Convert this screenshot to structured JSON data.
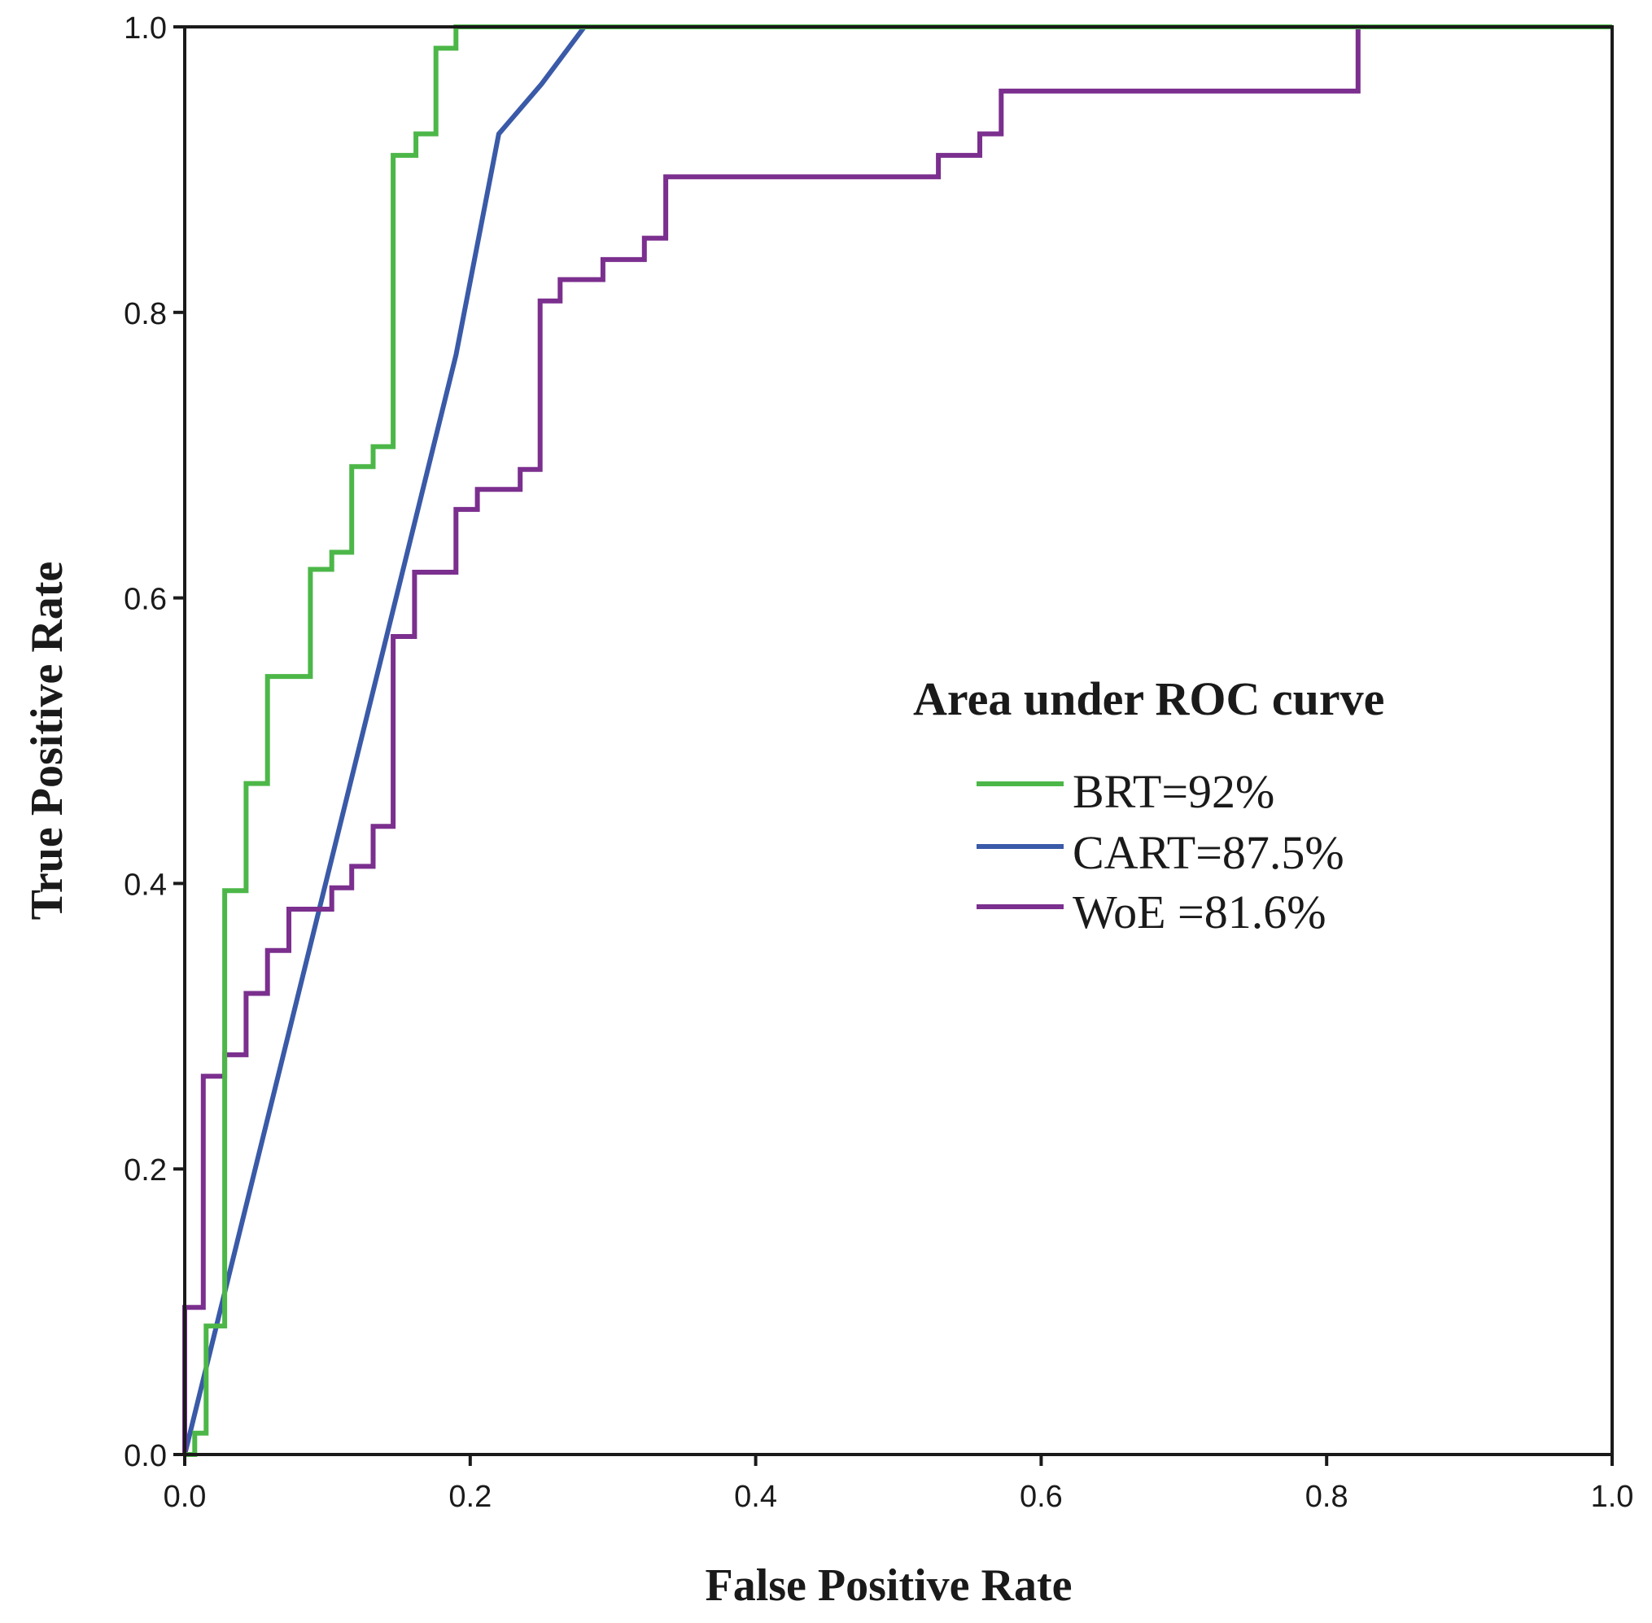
{
  "chart_data": {
    "type": "line",
    "title": "",
    "xlabel": "False Positive Rate",
    "ylabel": "True Positive Rate",
    "xlim": [
      0.0,
      1.0
    ],
    "ylim": [
      0.0,
      1.0
    ],
    "grid": false,
    "x_ticks": [
      "0.0",
      "0.2",
      "0.4",
      "0.6",
      "0.8",
      "1.0"
    ],
    "y_ticks": [
      "0.0",
      "0.2",
      "0.4",
      "0.6",
      "0.8",
      "1.0"
    ],
    "legend": {
      "title": "Area under ROC curve",
      "placement": "center-right",
      "entries": [
        "BRT=92%",
        "CART=87.5%",
        "WoE =81.6%"
      ]
    },
    "series": [
      {
        "name": "BRT=92%",
        "color": "#4cb748",
        "points": [
          [
            0.0,
            0.0
          ],
          [
            0.007,
            0.0
          ],
          [
            0.007,
            0.015
          ],
          [
            0.015,
            0.015
          ],
          [
            0.015,
            0.09
          ],
          [
            0.028,
            0.09
          ],
          [
            0.028,
            0.395
          ],
          [
            0.043,
            0.395
          ],
          [
            0.043,
            0.47
          ],
          [
            0.058,
            0.47
          ],
          [
            0.058,
            0.545
          ],
          [
            0.088,
            0.545
          ],
          [
            0.088,
            0.62
          ],
          [
            0.103,
            0.62
          ],
          [
            0.103,
            0.632
          ],
          [
            0.117,
            0.632
          ],
          [
            0.117,
            0.692
          ],
          [
            0.132,
            0.692
          ],
          [
            0.132,
            0.706
          ],
          [
            0.146,
            0.706
          ],
          [
            0.146,
            0.91
          ],
          [
            0.162,
            0.91
          ],
          [
            0.162,
            0.925
          ],
          [
            0.176,
            0.925
          ],
          [
            0.176,
            0.985
          ],
          [
            0.19,
            0.985
          ],
          [
            0.19,
            1.0
          ],
          [
            1.0,
            1.0
          ]
        ]
      },
      {
        "name": "CART=87.5%",
        "color": "#3a5aa8",
        "points": [
          [
            0.0,
            0.0
          ],
          [
            0.19,
            0.77
          ],
          [
            0.22,
            0.925
          ],
          [
            0.25,
            0.96
          ],
          [
            0.28,
            1.0
          ],
          [
            1.0,
            1.0
          ]
        ]
      },
      {
        "name": "WoE =81.6%",
        "color": "#7b2f8e",
        "points": [
          [
            0.0,
            0.0
          ],
          [
            0.0,
            0.103
          ],
          [
            0.013,
            0.103
          ],
          [
            0.013,
            0.265
          ],
          [
            0.028,
            0.265
          ],
          [
            0.028,
            0.28
          ],
          [
            0.043,
            0.28
          ],
          [
            0.043,
            0.323
          ],
          [
            0.058,
            0.323
          ],
          [
            0.058,
            0.353
          ],
          [
            0.073,
            0.353
          ],
          [
            0.073,
            0.382
          ],
          [
            0.103,
            0.382
          ],
          [
            0.103,
            0.397
          ],
          [
            0.117,
            0.397
          ],
          [
            0.117,
            0.412
          ],
          [
            0.132,
            0.412
          ],
          [
            0.132,
            0.44
          ],
          [
            0.146,
            0.44
          ],
          [
            0.146,
            0.573
          ],
          [
            0.161,
            0.573
          ],
          [
            0.161,
            0.618
          ],
          [
            0.19,
            0.618
          ],
          [
            0.19,
            0.662
          ],
          [
            0.205,
            0.662
          ],
          [
            0.205,
            0.676
          ],
          [
            0.235,
            0.676
          ],
          [
            0.235,
            0.69
          ],
          [
            0.249,
            0.69
          ],
          [
            0.249,
            0.808
          ],
          [
            0.263,
            0.808
          ],
          [
            0.263,
            0.823
          ],
          [
            0.293,
            0.823
          ],
          [
            0.293,
            0.837
          ],
          [
            0.322,
            0.837
          ],
          [
            0.322,
            0.852
          ],
          [
            0.337,
            0.852
          ],
          [
            0.337,
            0.895
          ],
          [
            0.528,
            0.895
          ],
          [
            0.528,
            0.91
          ],
          [
            0.557,
            0.91
          ],
          [
            0.557,
            0.925
          ],
          [
            0.572,
            0.925
          ],
          [
            0.572,
            0.955
          ],
          [
            0.822,
            0.955
          ],
          [
            0.822,
            1.0
          ],
          [
            1.0,
            1.0
          ]
        ]
      }
    ]
  }
}
